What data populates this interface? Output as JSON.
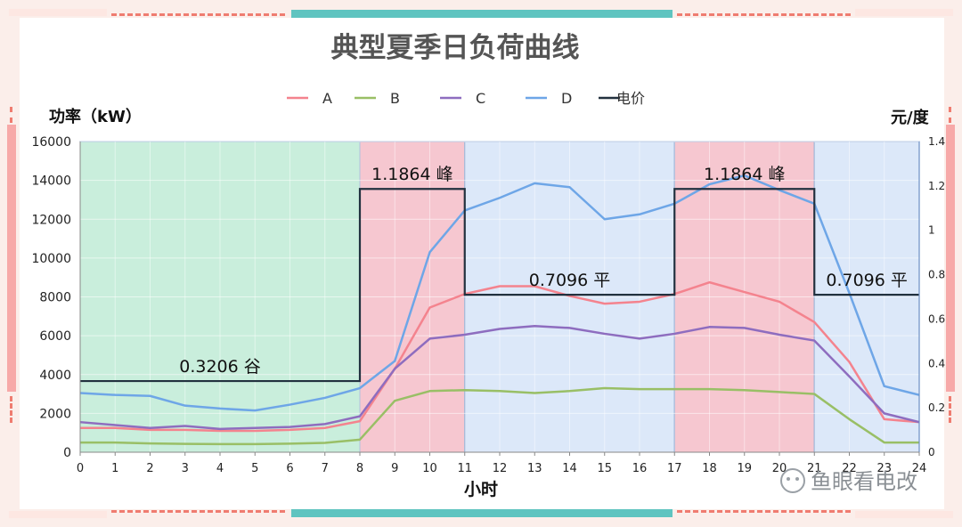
{
  "chart_data": {
    "type": "line",
    "title": "典型夏季日负荷曲线",
    "xlabel": "小时",
    "ylabel": "功率（kW）",
    "y2label": "元/度",
    "x": [
      0,
      1,
      2,
      3,
      4,
      5,
      6,
      7,
      8,
      9,
      10,
      11,
      12,
      13,
      14,
      15,
      16,
      17,
      18,
      19,
      20,
      21,
      22,
      23,
      24
    ],
    "xlim": [
      0,
      24
    ],
    "ylim": [
      0,
      16000
    ],
    "yticks": [
      0,
      2000,
      4000,
      6000,
      8000,
      10000,
      12000,
      14000,
      16000
    ],
    "y2lim": [
      0,
      1.4
    ],
    "y2ticks": [
      0,
      0.2,
      0.4,
      0.6,
      0.8,
      1,
      1.2,
      1.4
    ],
    "series": [
      {
        "name": "A",
        "color": "#f4838e",
        "values": [
          1250,
          1250,
          1150,
          1150,
          1100,
          1100,
          1150,
          1250,
          1600,
          4300,
          7450,
          8150,
          8550,
          8550,
          8050,
          7650,
          7750,
          8150,
          8750,
          8250,
          7750,
          6700,
          4650,
          1700,
          1550
        ]
      },
      {
        "name": "B",
        "color": "#99bf66",
        "values": [
          500,
          500,
          450,
          430,
          420,
          420,
          440,
          480,
          650,
          2650,
          3150,
          3200,
          3150,
          3050,
          3150,
          3300,
          3250,
          3250,
          3250,
          3200,
          3100,
          3000,
          1700,
          500,
          500
        ]
      },
      {
        "name": "C",
        "color": "#8e6dbf",
        "values": [
          1550,
          1400,
          1250,
          1350,
          1200,
          1250,
          1300,
          1450,
          1850,
          4300,
          5850,
          6050,
          6350,
          6500,
          6400,
          6100,
          5850,
          6100,
          6450,
          6400,
          6050,
          5750,
          3900,
          2000,
          1550
        ]
      },
      {
        "name": "D",
        "color": "#6ea6e7",
        "values": [
          3050,
          2950,
          2900,
          2400,
          2250,
          2150,
          2450,
          2800,
          3300,
          4700,
          10300,
          12450,
          13100,
          13850,
          13650,
          12000,
          12250,
          12800,
          13800,
          14250,
          13500,
          12800,
          8200,
          3400,
          2950
        ]
      }
    ],
    "price_series": {
      "name": "电价",
      "color": "#22313f",
      "steps": [
        {
          "from": 0,
          "to": 8,
          "price": 0.3206
        },
        {
          "from": 8,
          "to": 11,
          "price": 1.1864
        },
        {
          "from": 11,
          "to": 17,
          "price": 0.7096
        },
        {
          "from": 17,
          "to": 21,
          "price": 1.1864
        },
        {
          "from": 21,
          "to": 24,
          "price": 0.7096
        }
      ]
    },
    "periods": [
      {
        "from": 0,
        "to": 8,
        "label": "0.3206",
        "kind": "谷",
        "color": "#c9eedc"
      },
      {
        "from": 8,
        "to": 11,
        "label": "1.1864",
        "kind": "峰",
        "color": "#f6c7d0"
      },
      {
        "from": 11,
        "to": 17,
        "label": "0.7096",
        "kind": "平",
        "color": "#dce8f9"
      },
      {
        "from": 17,
        "to": 21,
        "label": "1.1864",
        "kind": "峰",
        "color": "#f6c7d0"
      },
      {
        "from": 21,
        "to": 24,
        "label": "0.7096",
        "kind": "平",
        "color": "#dce8f9"
      }
    ],
    "grid": true,
    "legend_position": "top"
  },
  "watermark": "鱼眼看电改"
}
